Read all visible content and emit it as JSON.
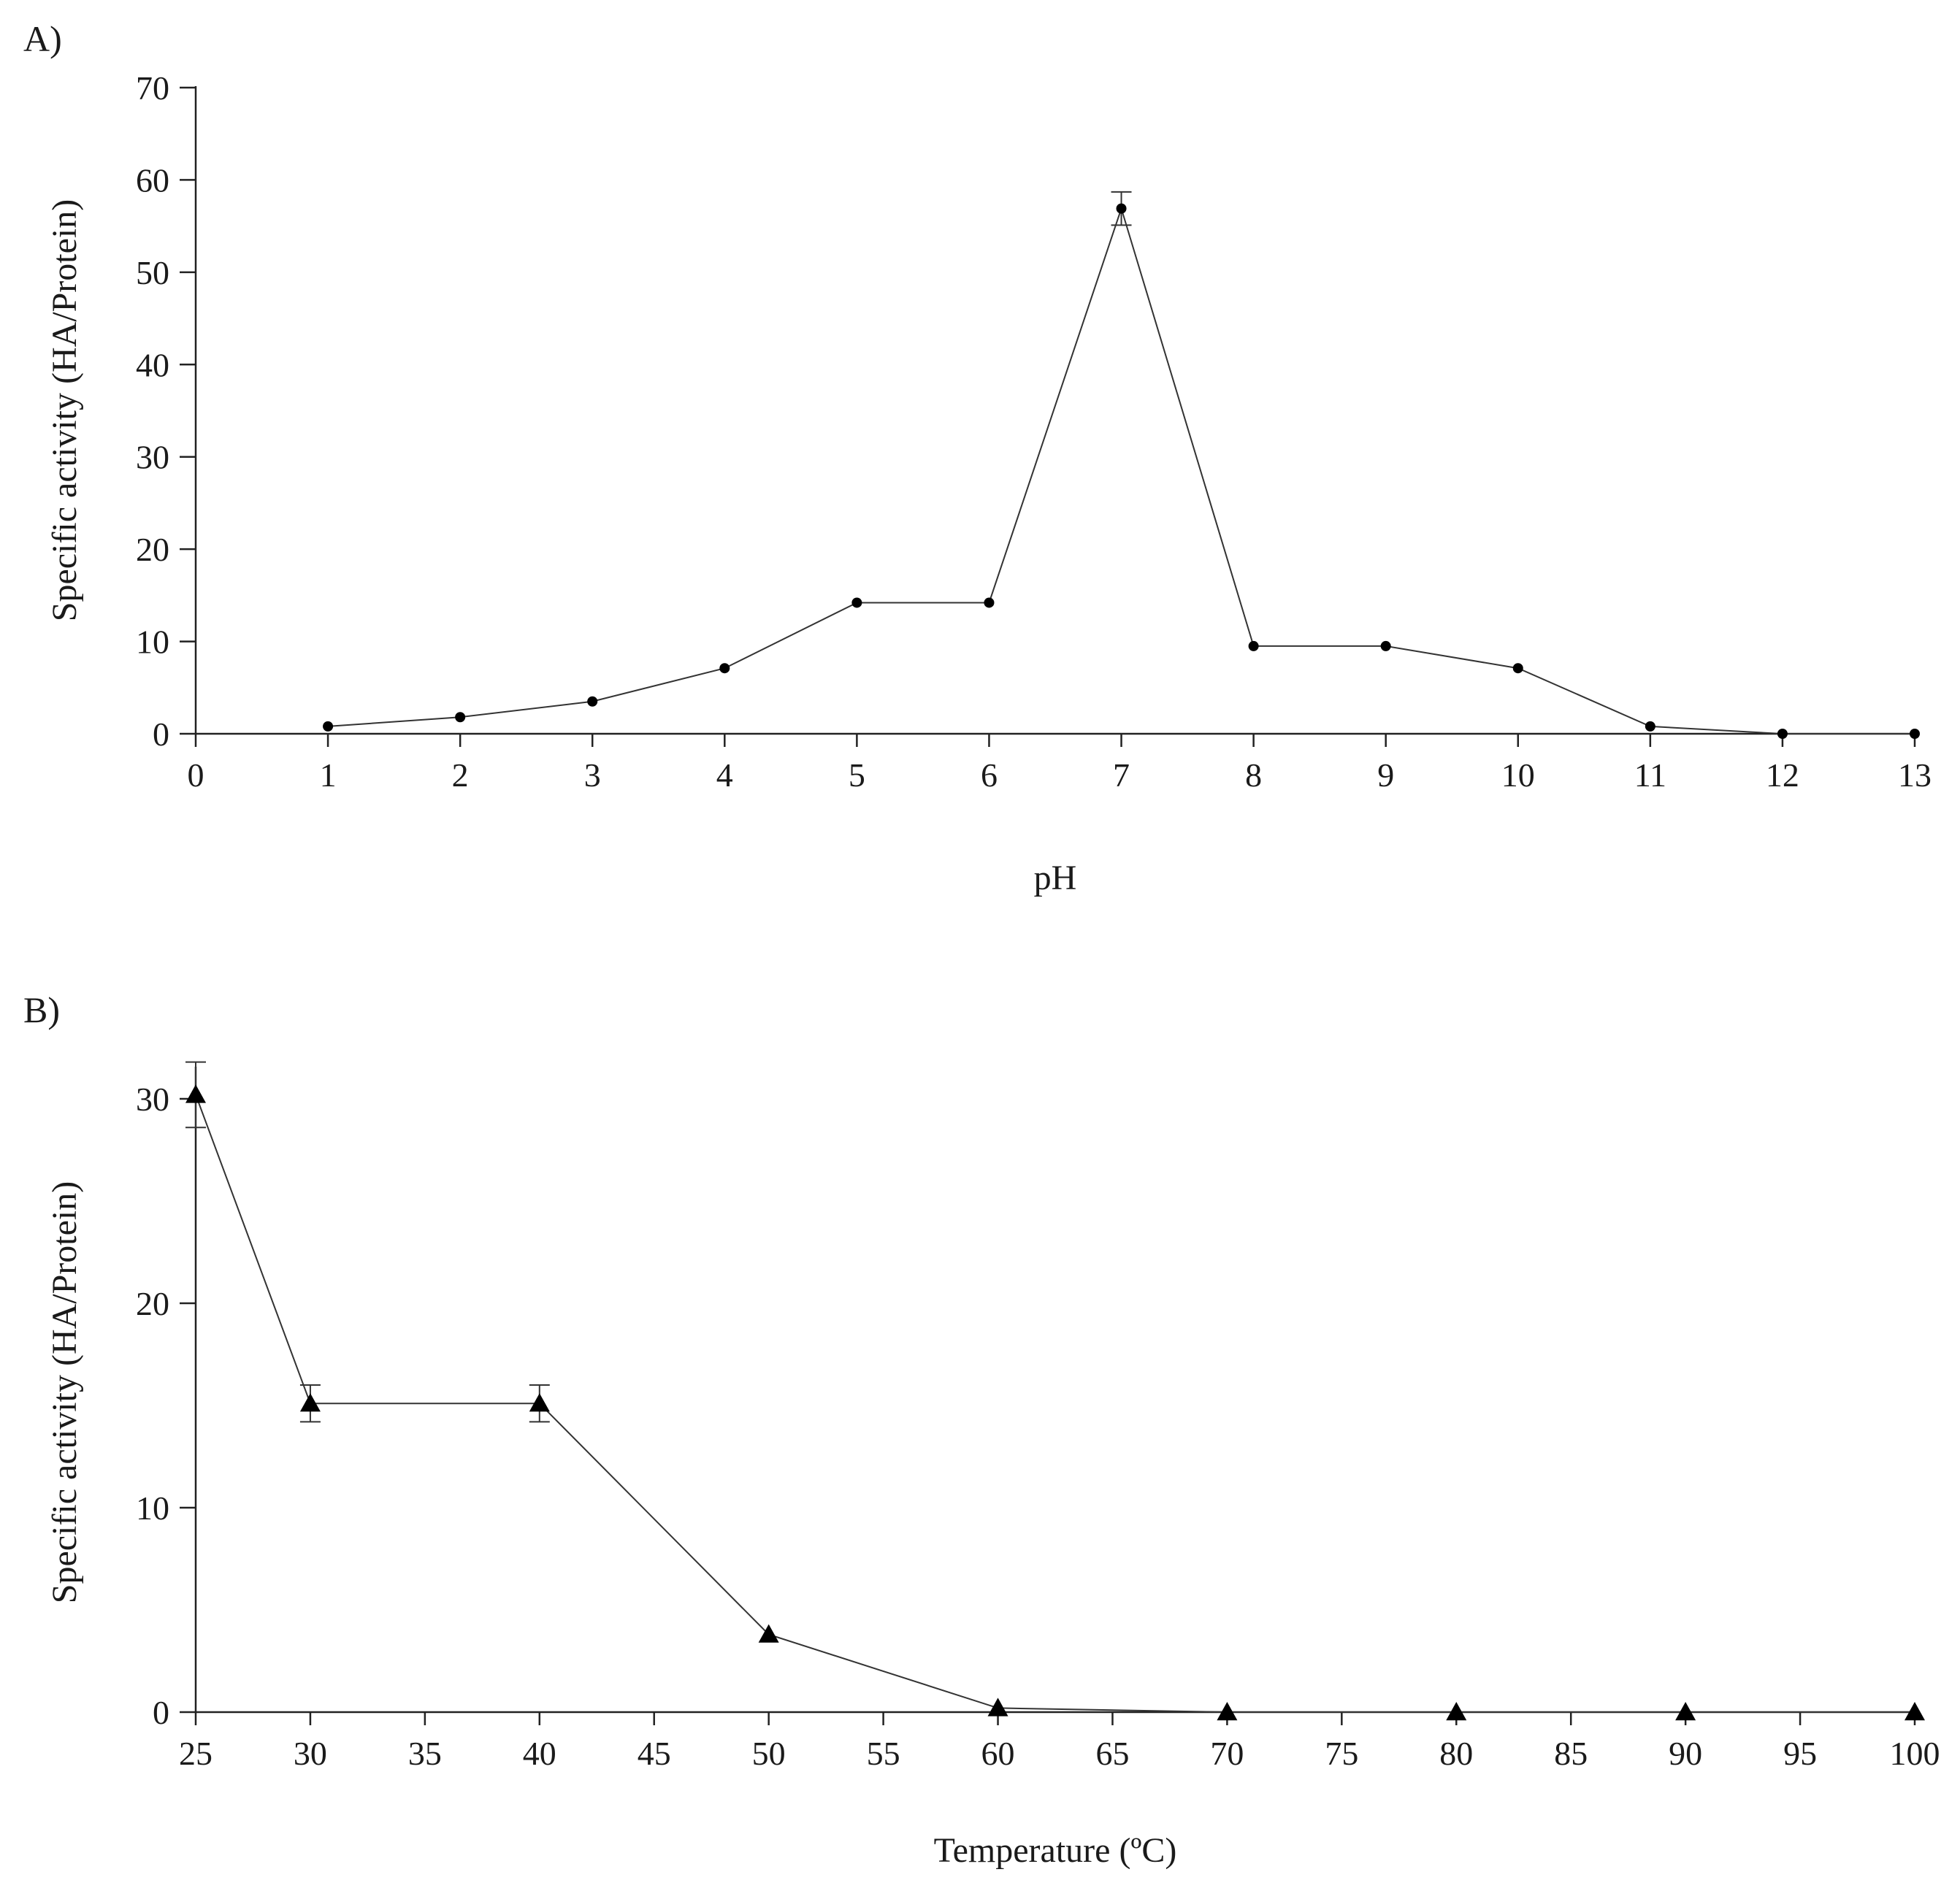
{
  "chart_data": [
    {
      "panel": "A)",
      "type": "line",
      "xlabel": "pH",
      "ylabel": "Specific activity (HA/Protein)",
      "xlim": [
        0,
        13
      ],
      "ylim": [
        0,
        70
      ],
      "xticks": [
        0,
        1,
        2,
        3,
        4,
        5,
        6,
        7,
        8,
        9,
        10,
        11,
        12,
        13
      ],
      "xtick_labels": [
        "0",
        "1",
        "2",
        "3",
        "4",
        "5",
        "6",
        "7",
        "8",
        "9",
        "10",
        "11",
        "12",
        "13"
      ],
      "yticks": [
        0,
        10,
        20,
        30,
        40,
        50,
        60,
        70
      ],
      "ytick_labels": [
        "0",
        "10",
        "20",
        "30",
        "40",
        "50",
        "60",
        "70"
      ],
      "marker": "circle",
      "x": [
        1,
        2,
        3,
        4,
        5,
        6,
        7,
        8,
        9,
        10,
        11,
        12,
        13
      ],
      "y": [
        0.8,
        1.8,
        3.5,
        7.1,
        14.2,
        14.2,
        56.9,
        9.5,
        9.5,
        7.1,
        0.8,
        0.0,
        0.0
      ],
      "error": [
        0,
        0,
        0,
        0,
        0,
        0,
        1.8,
        0,
        0,
        0,
        0,
        0,
        0
      ]
    },
    {
      "panel": "B)",
      "type": "line",
      "xlabel": "Temperature (ºC)",
      "ylabel": "Specific activity (HA/Protein)",
      "xlim": [
        25,
        100
      ],
      "ylim": [
        0,
        31.5
      ],
      "xticks": [
        25,
        30,
        35,
        40,
        45,
        50,
        55,
        60,
        65,
        70,
        75,
        80,
        85,
        90,
        95,
        100
      ],
      "xtick_labels": [
        "25",
        "30",
        "35",
        "40",
        "45",
        "50",
        "55",
        "60",
        "65",
        "70",
        "75",
        "80",
        "85",
        "90",
        "95",
        "100"
      ],
      "yticks": [
        0,
        10,
        20,
        30
      ],
      "ytick_labels": [
        "0",
        "10",
        "20",
        "30"
      ],
      "marker": "triangle",
      "x": [
        25,
        30,
        40,
        50,
        60,
        70,
        80,
        90,
        100
      ],
      "y": [
        30.2,
        15.1,
        15.1,
        3.8,
        0.2,
        0.0,
        0.0,
        0.0,
        0.0
      ],
      "error": [
        1.6,
        0.9,
        0.9,
        0,
        0,
        0,
        0,
        0,
        0
      ]
    }
  ]
}
